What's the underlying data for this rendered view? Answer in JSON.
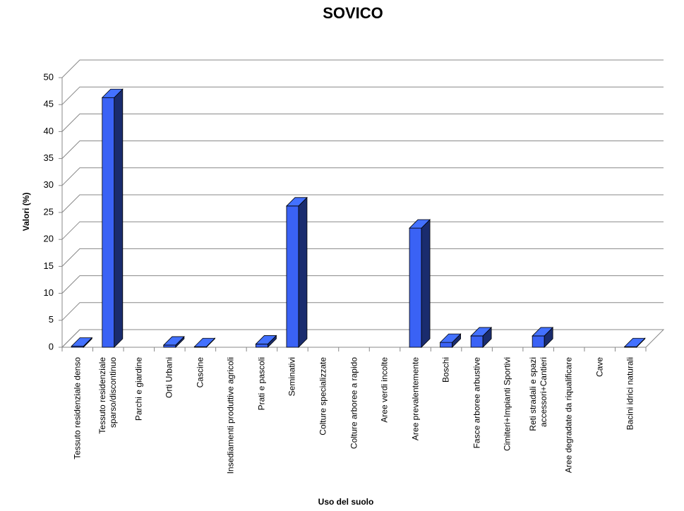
{
  "chart_data": {
    "type": "bar3d",
    "title": "SOVICO",
    "x_label": "Uso del suolo",
    "y_label": "Valori (%)",
    "categories": [
      "Tessuto residenziale denso",
      "Tessuto residenziale sparso/discontinuo",
      "Parchi e giardine",
      "Orti Urbani",
      "Cascine",
      "Insediamenti produttive agricoli",
      "Prati e pascoli",
      "Seminativi",
      "Colture specializzate",
      "Colture arboree a rapido",
      "Aree verdi incolte",
      "Aree prevalentemente",
      "Boschi",
      "Fasce arboree arbustive",
      "Cimiteri+Impianti Sportivi",
      "Reti stradali e spazi accessori+Cantieri",
      "Aree degradate da riqualificare",
      "Cave",
      "Bacini idrici naturali"
    ],
    "values": [
      0.2,
      46.3,
      0,
      0.4,
      0.1,
      0,
      0.6,
      26.2,
      0,
      0,
      0,
      22.1,
      0.9,
      2.1,
      0,
      2.1,
      0,
      0,
      0.1
    ],
    "color": "#3a62f5",
    "ylim": [
      0,
      50
    ],
    "yticks": [
      0,
      5,
      10,
      15,
      20,
      25,
      30,
      35,
      40,
      45,
      50
    ],
    "grid": true
  }
}
